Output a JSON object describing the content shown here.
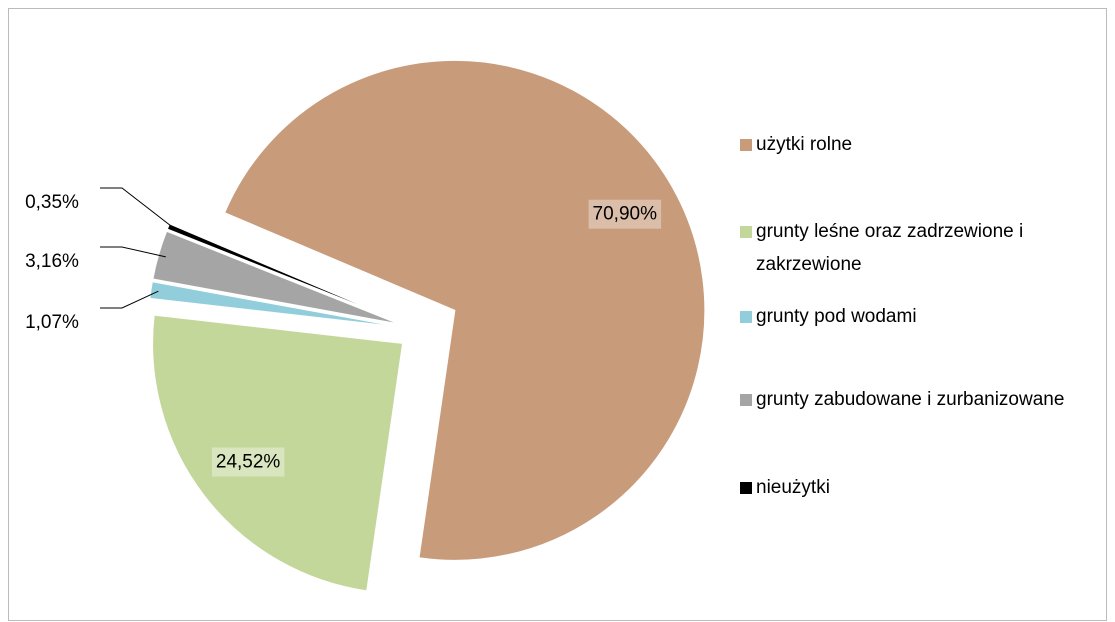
{
  "chart_data": {
    "type": "pie",
    "categories": [
      "użytki rolne",
      "grunty leśne oraz zadrzewione i zakrzewione",
      "grunty pod wodami",
      "grunty zabudowane i zurbanizowane",
      "nieużytki"
    ],
    "values": [
      70.9,
      24.52,
      1.07,
      3.16,
      0.35
    ],
    "value_labels": [
      "70,90%",
      "24,52%",
      "1,07%",
      "3,16%",
      "0,35%"
    ],
    "colors": [
      "#c89b7b",
      "#c4d79b",
      "#92cddc",
      "#a5a5a5",
      "#000000"
    ],
    "legend": "right"
  }
}
